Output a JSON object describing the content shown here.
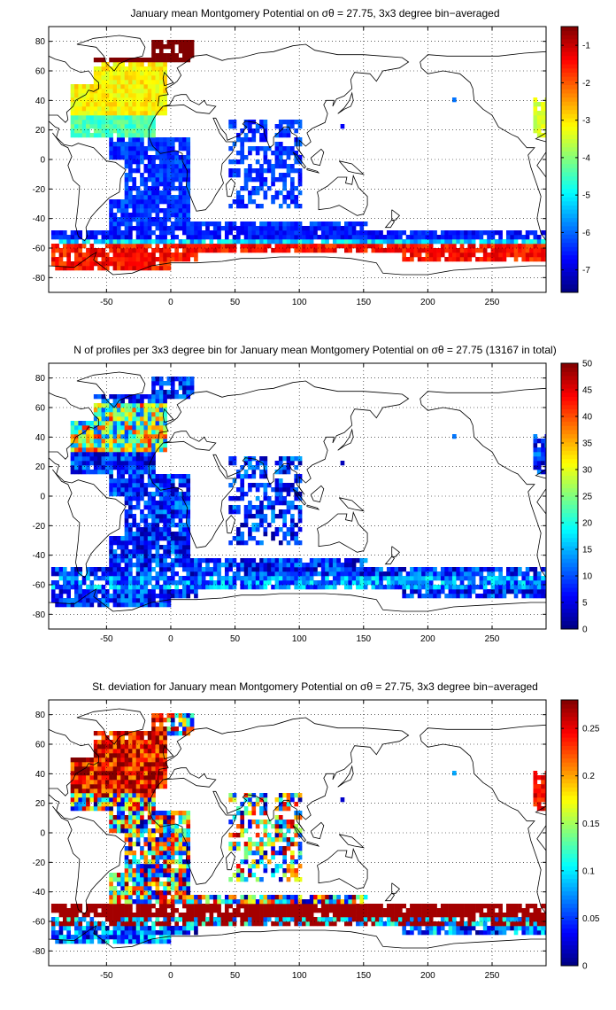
{
  "chart_data": [
    {
      "type": "heatmap",
      "title": "January mean Montgomery Potential on σθ = 27.75, 3x3 degree bin−averaged",
      "xlim": [
        -95,
        292
      ],
      "ylim": [
        -90,
        90
      ],
      "x_ticks": [
        -50,
        0,
        50,
        100,
        150,
        200,
        250
      ],
      "y_ticks": [
        -80,
        -60,
        -40,
        -20,
        0,
        20,
        40,
        60,
        80
      ],
      "grid": true,
      "colormap": "jet",
      "clim": [
        -7.6,
        -0.5
      ],
      "colorbar_ticks": [
        -1,
        -2,
        -3,
        -4,
        -5,
        -6,
        -7
      ]
    },
    {
      "type": "heatmap",
      "title": "N of profiles per 3x3 degree bin for January mean Montgomery Potential on σθ = 27.75 (13167 in total)",
      "xlim": [
        -95,
        292
      ],
      "ylim": [
        -90,
        90
      ],
      "x_ticks": [
        -50,
        0,
        50,
        100,
        150,
        200,
        250
      ],
      "y_ticks": [
        -80,
        -60,
        -40,
        -20,
        0,
        20,
        40,
        60,
        80
      ],
      "grid": true,
      "colormap": "jet",
      "clim": [
        0,
        50
      ],
      "colorbar_ticks": [
        0,
        5,
        10,
        15,
        20,
        25,
        30,
        35,
        40,
        45,
        50
      ]
    },
    {
      "type": "heatmap",
      "title": "St. deviation for January mean Montgomery Potential on σθ = 27.75, 3x3 degree bin−averaged",
      "xlim": [
        -95,
        292
      ],
      "ylim": [
        -90,
        90
      ],
      "x_ticks": [
        -50,
        0,
        50,
        100,
        150,
        200,
        250
      ],
      "y_ticks": [
        -80,
        -60,
        -40,
        -20,
        0,
        20,
        40,
        60,
        80
      ],
      "grid": true,
      "colormap": "jet",
      "clim": [
        0,
        0.28
      ],
      "colorbar_ticks": [
        0,
        0.05,
        0.1,
        0.15,
        0.2,
        0.25
      ]
    }
  ]
}
